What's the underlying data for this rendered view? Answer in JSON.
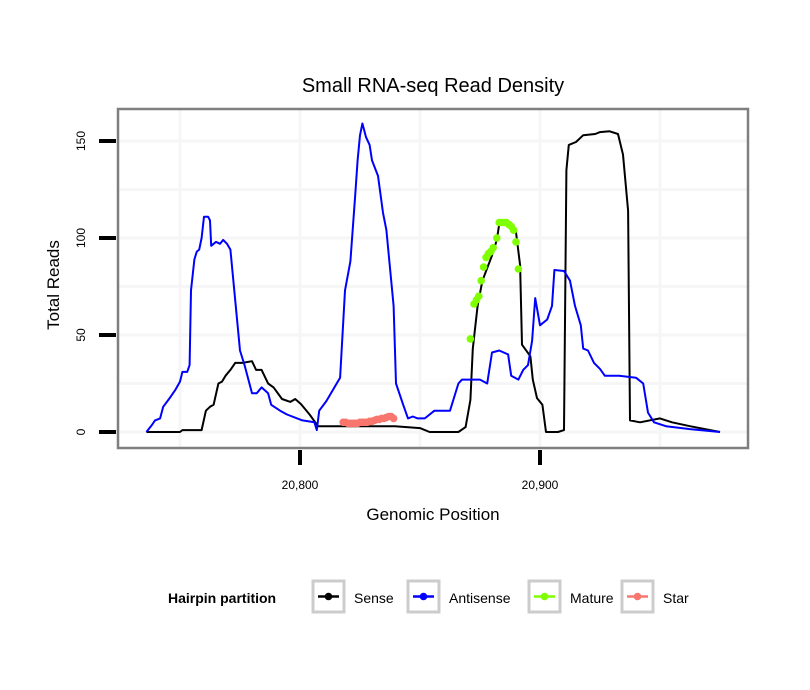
{
  "chart_data": {
    "type": "line",
    "title": "Small RNA-seq Read Density",
    "xlabel": "Genomic Position",
    "ylabel": "Total Reads",
    "xlim": [
      20725,
      20987
    ],
    "ylim": [
      -8,
      167
    ],
    "x_ticks": [
      20800,
      20900
    ],
    "x_tick_labels": [
      "20,800",
      "20,900"
    ],
    "x_minor_grid": [
      20750,
      20850,
      20950
    ],
    "y_ticks": [
      0,
      50,
      100,
      150
    ],
    "y_tick_labels": [
      "0",
      "50",
      "100",
      "150"
    ],
    "y_minor_grid": [
      25,
      75,
      125
    ],
    "grid": true,
    "legend": {
      "title": "Hairpin partition",
      "position": "bottom",
      "entries": [
        "Sense",
        "Antisense",
        "Mature",
        "Star"
      ]
    },
    "series": [
      {
        "name": "Sense",
        "color": "#000000",
        "style": "line",
        "x": [
          20736,
          20750,
          20751,
          20759,
          20760.8,
          20762.5,
          20764,
          20766,
          20767.5,
          20769,
          20771,
          20773,
          20776,
          20780,
          20781.7,
          20784,
          20786.7,
          20789,
          20792.5,
          20796,
          20798,
          20800.4,
          20804,
          20807.5,
          20816.7,
          20839.6,
          20850,
          20854,
          20866,
          20869,
          20871,
          20872,
          20874,
          20876,
          20880,
          20882,
          20883,
          20887.5,
          20890,
          20891.7,
          20892.5,
          20896,
          20897,
          20898.75,
          20901,
          20902.5,
          20907.5,
          20910,
          20911,
          20912,
          20915,
          20918,
          20923,
          20925,
          20929,
          20932.5,
          20934.6,
          20936.7,
          20937.5,
          20941.7,
          20950,
          20955,
          20962.5,
          20975
        ],
        "y": [
          0,
          0,
          1,
          1,
          11,
          13,
          14,
          25,
          26,
          29,
          32,
          35.6,
          35.6,
          36.5,
          32,
          32,
          25,
          23,
          17,
          15.5,
          17,
          14.4,
          9,
          3,
          3,
          3,
          2,
          0,
          0,
          2.5,
          16.5,
          43,
          65,
          78,
          91,
          99,
          107,
          108,
          103,
          86,
          45,
          39,
          27,
          17.5,
          14,
          0,
          0,
          1,
          135,
          148,
          149.5,
          153,
          153.6,
          154.6,
          155,
          153.6,
          143,
          114,
          6,
          5,
          7,
          5,
          3,
          0
        ]
      },
      {
        "name": "Antisense",
        "color": "#0000FF",
        "style": "line",
        "x": [
          20736,
          20738.3,
          20739.6,
          20741.7,
          20743,
          20746,
          20748,
          20750,
          20751,
          20753,
          20754,
          20754.6,
          20756,
          20757,
          20758,
          20759,
          20760,
          20761.7,
          20762.5,
          20763,
          20765,
          20766.7,
          20768,
          20769.6,
          20771,
          20773,
          20775,
          20777,
          20780,
          20782,
          20784,
          20786.7,
          20788,
          20791.7,
          20794.6,
          20801,
          20806,
          20807,
          20808,
          20811,
          20816.7,
          20818.75,
          20821,
          20823,
          20824,
          20825,
          20826,
          20827.5,
          20829,
          20830,
          20832.5,
          20834.6,
          20836,
          20839,
          20840,
          20843,
          20845,
          20847,
          20849,
          20852,
          20856,
          20862.5,
          20866,
          20867.5,
          20875,
          20878,
          20880,
          20883,
          20886.7,
          20888,
          20891,
          20893,
          20895,
          20896.7,
          20898,
          20900,
          20903,
          20905,
          20906,
          20910,
          20912.5,
          20914.6,
          20917,
          20918,
          20920,
          20922.5,
          20925,
          20927,
          20933,
          20940,
          20943,
          20945,
          20947.5,
          20952.5,
          20962.5,
          20975
        ],
        "y": [
          0,
          3.6,
          6,
          7,
          13,
          18,
          21.6,
          26,
          31,
          31,
          34.5,
          73,
          89,
          93,
          94,
          100,
          111,
          111,
          109,
          96,
          98,
          97,
          99,
          97,
          94,
          68,
          42,
          34,
          20,
          20,
          23,
          20,
          14,
          11,
          9,
          6,
          5,
          1,
          11,
          16,
          28,
          73,
          88,
          122,
          140,
          153,
          159,
          152,
          148,
          140,
          132,
          113,
          104,
          65,
          25,
          14,
          7,
          8,
          7,
          7,
          11,
          11,
          25,
          27,
          27,
          25,
          41,
          42,
          40,
          29,
          27,
          32,
          34.5,
          47,
          69,
          55,
          58,
          65,
          83.5,
          83,
          78,
          65,
          55,
          43,
          42,
          35.6,
          32.5,
          29,
          29,
          28,
          25,
          10,
          5,
          3,
          1.5,
          0
        ]
      },
      {
        "name": "Mature",
        "color": "#7FFF00",
        "style": "points",
        "x": [
          20871,
          20872.5,
          20873.5,
          20874.5,
          20875.5,
          20876.5,
          20877.5,
          20878.5,
          20879.5,
          20880.5,
          20882,
          20883,
          20884,
          20885,
          20886,
          20887,
          20888,
          20889,
          20890,
          20891
        ],
        "y": [
          48,
          66,
          68,
          70,
          78,
          85,
          90,
          92,
          93,
          95,
          100,
          108,
          108,
          108,
          108,
          107,
          106,
          104,
          98,
          84
        ]
      },
      {
        "name": "Star",
        "color": "#F8766D",
        "style": "points",
        "x": [
          20818,
          20819,
          20820,
          20821,
          20822,
          20823,
          20824,
          20825,
          20826,
          20827,
          20828,
          20829,
          20830,
          20831,
          20832,
          20833,
          20834,
          20835,
          20836,
          20837,
          20838,
          20839
        ],
        "y": [
          5,
          5,
          4.5,
          4.5,
          4.5,
          4.5,
          4.5,
          5,
          5,
          5,
          5,
          5.5,
          5.5,
          6,
          6.5,
          6.5,
          7,
          7,
          7.5,
          8,
          8,
          7
        ]
      }
    ]
  }
}
